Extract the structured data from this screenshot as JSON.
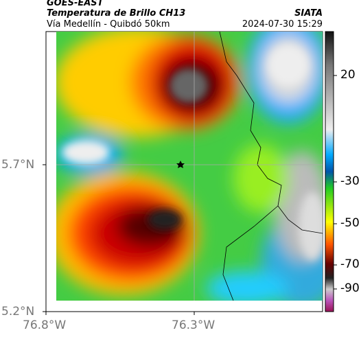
{
  "header": {
    "title": "GOES-EAST",
    "subtitle": "Temperatura de Brillo CH13",
    "source": "SIATA",
    "route": "Vía Medellín - Quibdó 50km",
    "timestamp": "2024-07-30 15:29"
  },
  "axes": {
    "y_labels": [
      "5.7°N",
      "5.2°N"
    ],
    "x_labels": [
      "76.8°W",
      "76.3°W"
    ]
  },
  "colorbar": {
    "labels": [
      "20",
      "-30",
      "-50",
      "-70",
      "-90"
    ]
  }
}
